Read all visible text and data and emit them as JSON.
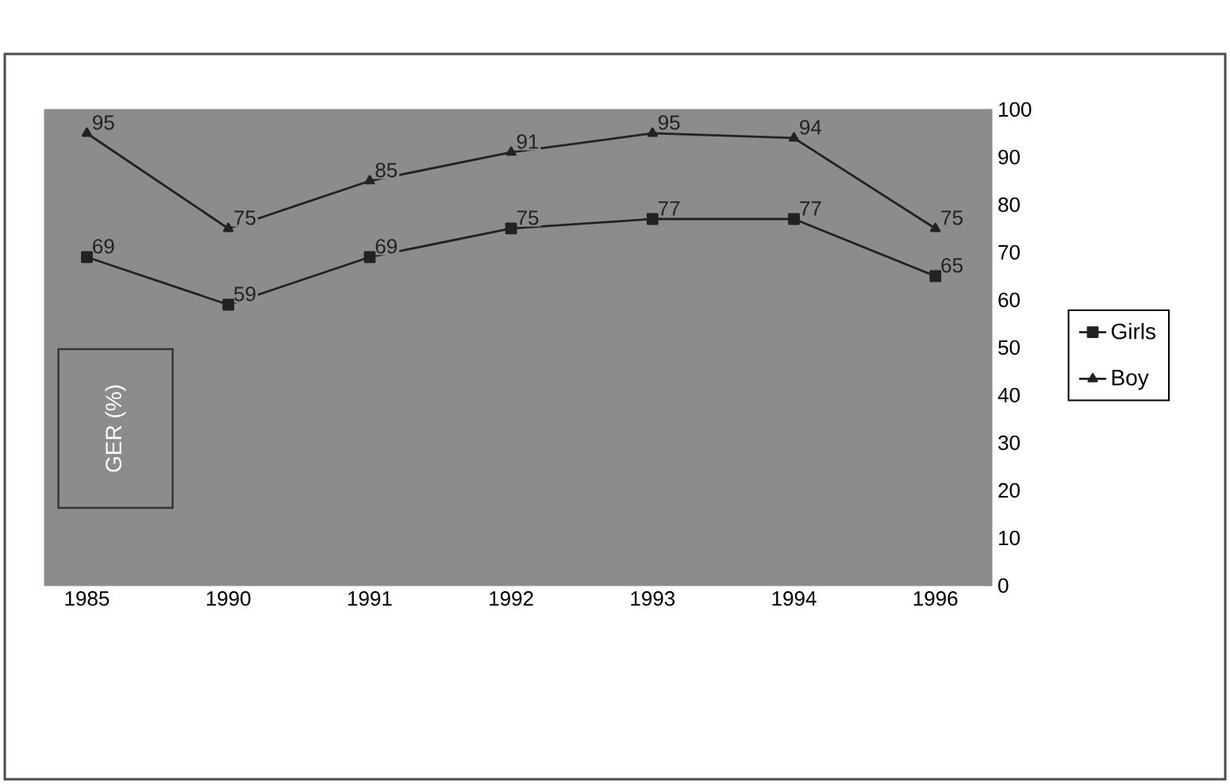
{
  "chart_data": {
    "type": "line",
    "ylabel": "GER (%)",
    "categories": [
      "1985",
      "1990",
      "1991",
      "1992",
      "1993",
      "1994",
      "1996"
    ],
    "series": [
      {
        "name": "Girls",
        "color": "#222222",
        "marker": "square",
        "values": [
          69,
          59,
          69,
          75,
          77,
          77,
          65
        ]
      },
      {
        "name": "Boy",
        "color": "#222222",
        "marker": "triangle",
        "values": [
          95,
          75,
          85,
          91,
          95,
          94,
          75
        ]
      }
    ],
    "ylim": [
      0,
      100
    ],
    "yticks": [
      0,
      10,
      20,
      30,
      40,
      50,
      60,
      70,
      80,
      90,
      100
    ],
    "data_labels": true,
    "legend": "right",
    "grid": false,
    "line_style": "solid"
  }
}
